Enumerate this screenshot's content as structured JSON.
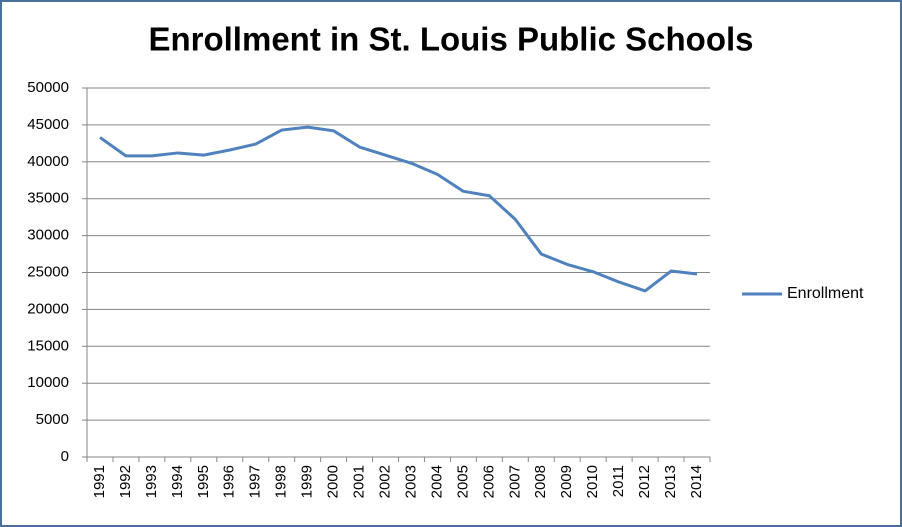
{
  "chart_data": {
    "type": "line",
    "title": "Enrollment in St. Louis Public Schools",
    "categories": [
      "1991",
      "1992",
      "1993",
      "1994",
      "1995",
      "1996",
      "1997",
      "1998",
      "1999",
      "2000",
      "2001",
      "2002",
      "2003",
      "2004",
      "2005",
      "2006",
      "2007",
      "2008",
      "2009",
      "2010",
      "2011",
      "2012",
      "2013",
      "2014"
    ],
    "series": [
      {
        "name": "Enrollment",
        "color": "#4f81bd",
        "values": [
          43300,
          40800,
          40800,
          41200,
          40900,
          41600,
          42400,
          44300,
          44700,
          44200,
          42000,
          40900,
          39800,
          38300,
          36000,
          35400,
          32200,
          27500,
          26100,
          25100,
          23700,
          22500,
          25200,
          24800
        ]
      }
    ],
    "ylim": [
      0,
      50000
    ],
    "yticks": [
      0,
      5000,
      10000,
      15000,
      20000,
      25000,
      30000,
      35000,
      40000,
      45000,
      50000
    ],
    "grid": true,
    "legend": "right"
  }
}
